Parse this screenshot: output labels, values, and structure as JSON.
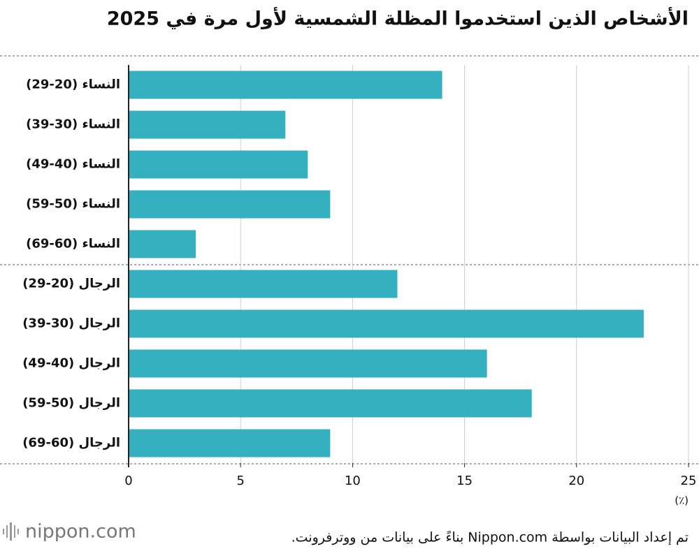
{
  "chart_data": {
    "type": "hbar",
    "title": "الأشخاص الذين استخدموا المظلة الشمسية لأول مرة في 2025",
    "categories": [
      "النساء (20-29)",
      "النساء (30-39)",
      "النساء (40-49)",
      "النساء (50-59)",
      "النساء (60-69)",
      "الرجال (20-29)",
      "الرجال (30-39)",
      "الرجال (40-49)",
      "الرجال (50-59)",
      "الرجال (60-69)"
    ],
    "values": [
      14,
      7,
      8,
      9,
      3,
      12,
      23,
      16,
      18,
      9
    ],
    "color": "#35b0bf",
    "xlim": [
      0,
      25
    ],
    "xticks": [
      0,
      5,
      10,
      15,
      20,
      25
    ],
    "x_unit": "(٪)",
    "grid": true
  },
  "source": "تم إعداد البيانات بواسطة Nippon.com بناءً على بيانات من ووترفرونت.",
  "logo": "nippon.com"
}
